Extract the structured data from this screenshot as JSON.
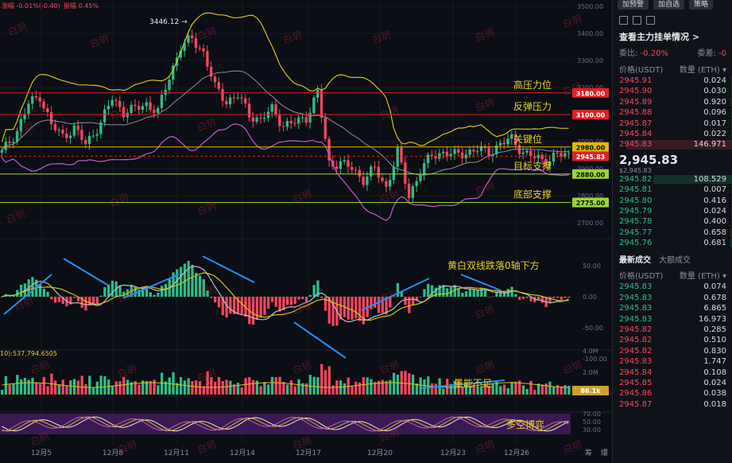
{
  "header": {
    "change_label": "涨幅",
    "change_value": "-0.01%(-0.40)",
    "amplitude_label": "振幅",
    "amplitude_value": "0.45%"
  },
  "watermark": "白玥",
  "colors": {
    "up": "#2ebd85",
    "down": "#f6465d",
    "yellow": "#d4c21a",
    "purple": "#c05bd0",
    "white": "#b9bec8",
    "blue": "#1e90ff",
    "priceRed": "#e0202a",
    "priceGreen": "#9bd334",
    "priceGold": "#e0b800"
  },
  "chart_data": [
    {
      "type": "candlestick",
      "panel": "price",
      "ylim": [
        2650,
        3500
      ],
      "y_ticks": [
        "3500.00",
        "3400.00",
        "3300.00",
        "3200.00",
        "3100.00",
        "3000.00",
        "2900.00",
        "2800.00",
        "2700.00"
      ],
      "x_ticks": [
        "12月5",
        "12月8",
        "12月11",
        "12月14",
        "12月17",
        "12月20",
        "12月23",
        "12月26"
      ],
      "high_label": "3446.12",
      "close_points": [
        [
          0,
          2960
        ],
        [
          4,
          3040
        ],
        [
          7,
          3140
        ],
        [
          10,
          3170
        ],
        [
          13,
          3060
        ],
        [
          16,
          3020
        ],
        [
          19,
          3050
        ],
        [
          22,
          2990
        ],
        [
          26,
          3070
        ],
        [
          29,
          3160
        ],
        [
          32,
          3110
        ],
        [
          35,
          3120
        ],
        [
          38,
          3140
        ],
        [
          41,
          3110
        ],
        [
          44,
          3240
        ],
        [
          47,
          3350
        ],
        [
          50,
          3380
        ],
        [
          53,
          3330
        ],
        [
          56,
          3200
        ],
        [
          59,
          3150
        ],
        [
          62,
          3170
        ],
        [
          65,
          3100
        ],
        [
          68,
          3080
        ],
        [
          71,
          3120
        ],
        [
          74,
          3060
        ],
        [
          77,
          3070
        ],
        [
          80,
          3090
        ],
        [
          83,
          3180
        ],
        [
          86,
          2920
        ],
        [
          89,
          2920
        ],
        [
          92,
          2900
        ],
        [
          95,
          2860
        ],
        [
          98,
          2900
        ],
        [
          101,
          2830
        ],
        [
          104,
          2960
        ],
        [
          107,
          2800
        ],
        [
          110,
          2890
        ],
        [
          113,
          2950
        ],
        [
          116,
          2960
        ],
        [
          119,
          2950
        ],
        [
          122,
          2960
        ],
        [
          125,
          2970
        ],
        [
          128,
          2960
        ],
        [
          131,
          2990
        ],
        [
          134,
          3010
        ],
        [
          137,
          2960
        ],
        [
          140,
          2940
        ],
        [
          143,
          2930
        ],
        [
          146,
          2950
        ]
      ],
      "levels": [
        {
          "label": "高压力位",
          "value": 3180.0,
          "price_tag": "3180.00",
          "color": "#e0202a"
        },
        {
          "label": "反弹压力",
          "value": 3100.0,
          "price_tag": "3100.00",
          "color": "#e0202a"
        },
        {
          "label": "关键位",
          "value": 2980.0,
          "price_tag": "2980.00",
          "color": "#e0b800"
        },
        {
          "label": "",
          "value": 2945.83,
          "price_tag": "2945.83",
          "color": "#e0202a"
        },
        {
          "label": "目标支撑",
          "value": 2880.0,
          "price_tag": "2880.00",
          "color": "#9bd334"
        },
        {
          "label": "底部支撑",
          "value": 2775.0,
          "price_tag": "2775.00",
          "color": "#9bd334"
        }
      ]
    },
    {
      "type": "bar",
      "panel": "macd",
      "ylim": [
        -100,
        50
      ],
      "y_ticks": [
        "50.00",
        "0.00",
        "-50.00",
        "-100.00"
      ],
      "annotation": "黄白双线跌落0轴下方"
    },
    {
      "type": "bar",
      "panel": "volume",
      "legend": "10):537,794.6505",
      "y_ticks": [
        "4.0M",
        "2.0M"
      ],
      "price_tag": "86.1k",
      "annotation": "量能不足"
    },
    {
      "type": "line",
      "panel": "kdj",
      "y_ticks": [
        "70.00",
        "50.00",
        "30.00"
      ],
      "annotation": "多空博弈"
    }
  ],
  "orderbook": {
    "buttons": [
      "加预警",
      "加自选",
      "策略"
    ],
    "title": "查看主力挂单情况 >",
    "ratio_label": "委比:",
    "ratio_value": "-0.20%",
    "diff_label": "委差:",
    "diff_value": "-0",
    "price_head": "价格(USDT)",
    "qty_head": "数量 (ETH)",
    "asks": [
      {
        "p": "2945.91",
        "q": "0.024"
      },
      {
        "p": "2945.90",
        "q": "0.030"
      },
      {
        "p": "2945.89",
        "q": "0.920"
      },
      {
        "p": "2945.88",
        "q": "0.096"
      },
      {
        "p": "2945.87",
        "q": "0.017"
      },
      {
        "p": "2945.84",
        "q": "0.022"
      },
      {
        "p": "2945.83",
        "q": "146.971"
      }
    ],
    "last_price": "2,945.83",
    "last_sub": "$2,945.83",
    "bids": [
      {
        "p": "2945.82",
        "q": "108.529"
      },
      {
        "p": "2945.81",
        "q": "0.007"
      },
      {
        "p": "2945.80",
        "q": "0.416"
      },
      {
        "p": "2945.79",
        "q": "0.024"
      },
      {
        "p": "2945.78",
        "q": "0.400"
      },
      {
        "p": "2945.77",
        "q": "0.658"
      },
      {
        "p": "2945.76",
        "q": "0.681"
      }
    ],
    "tab_active": "最新成交",
    "tab_other": "大额成交",
    "trade_head_price": "价格(USDT)",
    "trade_head_qty": "数量 (ETH)",
    "trades": [
      {
        "p": "2945.83",
        "q": "0.074",
        "side": "up"
      },
      {
        "p": "2945.83",
        "q": "0.678",
        "side": "up"
      },
      {
        "p": "2945.83",
        "q": "6.865",
        "side": "up"
      },
      {
        "p": "2945.83",
        "q": "16.973",
        "side": "up"
      },
      {
        "p": "2945.82",
        "q": "0.285",
        "side": "down"
      },
      {
        "p": "2945.82",
        "q": "0.510",
        "side": "down"
      },
      {
        "p": "2945.82",
        "q": "0.830",
        "side": "down"
      },
      {
        "p": "2945.83",
        "q": "1.747",
        "side": "down"
      },
      {
        "p": "2945.84",
        "q": "0.108",
        "side": "down"
      },
      {
        "p": "2945.85",
        "q": "0.024",
        "side": "down"
      },
      {
        "p": "2945.86",
        "q": "0.038",
        "side": "down"
      },
      {
        "p": "2945.87",
        "q": "0.018",
        "side": "down"
      }
    ]
  },
  "footer": {
    "left": "筹",
    "right": "爆"
  }
}
